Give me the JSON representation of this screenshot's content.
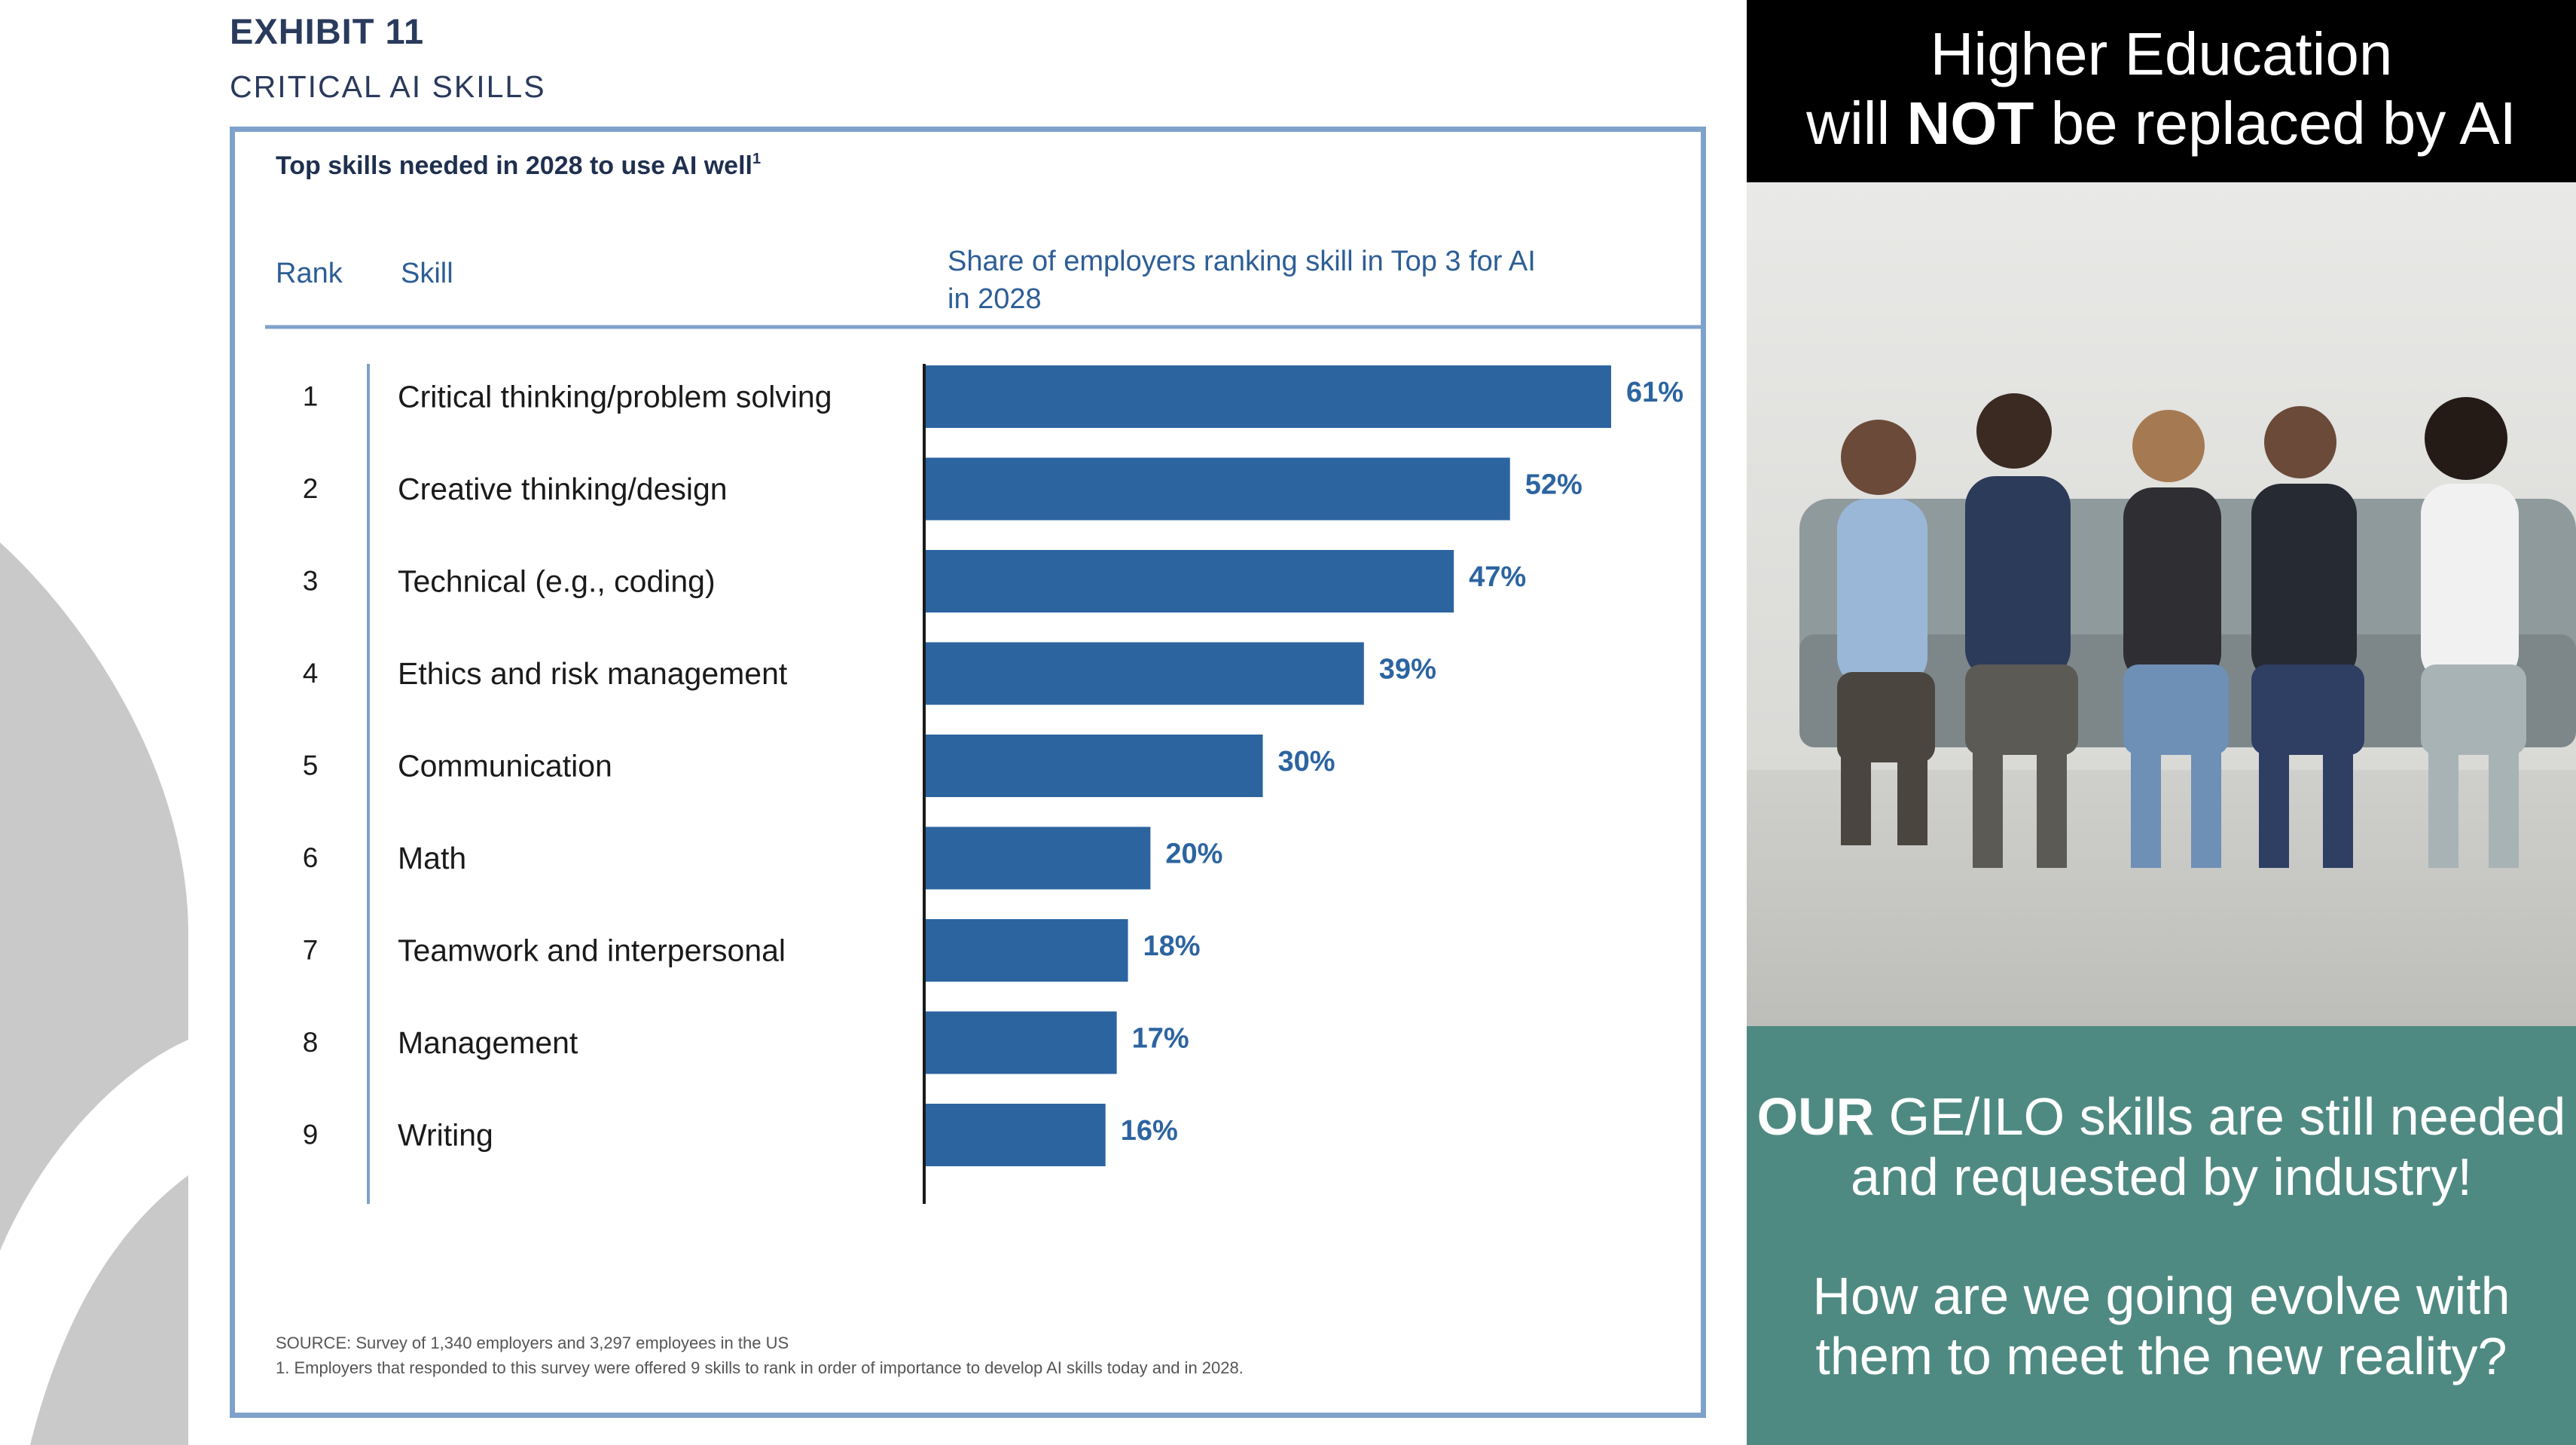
{
  "exhibit": {
    "title": "EXHIBIT 11",
    "subtitle": "CRITICAL AI SKILLS"
  },
  "chart_data": {
    "type": "bar",
    "orientation": "horizontal",
    "title": "Top skills needed in 2028 to use AI well",
    "title_footnote_marker": "1",
    "column_headers": {
      "rank": "Rank",
      "skill": "Skill",
      "share": "Share of employers ranking skill in Top 3 for AI in 2028"
    },
    "ranks": [
      "1",
      "2",
      "3",
      "4",
      "5",
      "6",
      "7",
      "8",
      "9"
    ],
    "categories": [
      "Critical thinking/problem solving",
      "Creative thinking/design",
      "Technical (e.g., coding)",
      "Ethics and risk management",
      "Communication",
      "Math",
      "Teamwork and interpersonal",
      "Management",
      "Writing"
    ],
    "values": [
      61,
      52,
      47,
      39,
      30,
      20,
      18,
      17,
      16
    ],
    "value_labels": [
      "61%",
      "52%",
      "47%",
      "39%",
      "30%",
      "20%",
      "18%",
      "17%",
      "16%"
    ],
    "value_unit": "%",
    "bar_color": "#2c64a0",
    "header_color": "#2d5e96",
    "source": "SOURCE: Survey of 1,340 employers and 3,297 employees in the US",
    "footnote": "1. Employers that responded to this survey were offered 9 skills to rank in order of importance to develop AI skills today and in 2028.",
    "grid": false,
    "legend": "none"
  },
  "slide": {
    "headline_line1": "Higher Education",
    "headline_line2_pre": "will ",
    "headline_line2_bold": "NOT",
    "headline_line2_post": " be replaced by AI",
    "message_bold": "OUR",
    "message_rest": " GE/ILO skills are still needed and requested by industry!",
    "question": "How are we going evolve with them to meet the new reality?",
    "photo_icon": "group-photo-icon",
    "teal_color": "#4f8a82"
  }
}
